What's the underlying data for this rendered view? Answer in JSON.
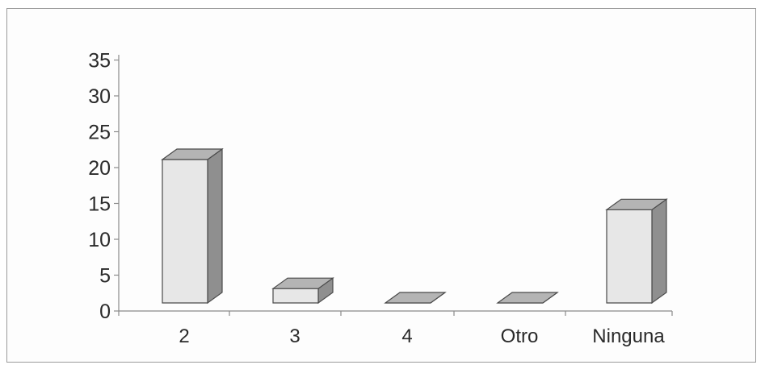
{
  "chart_data": {
    "type": "bar",
    "title": "",
    "xlabel": "",
    "ylabel": "",
    "categories": [
      "2",
      "3",
      "4",
      "Otro",
      "Ninguna"
    ],
    "values": [
      20,
      2,
      0,
      0,
      13
    ],
    "ylim": [
      0,
      35
    ],
    "yticks": [
      "0",
      "5",
      "10",
      "15",
      "20",
      "25",
      "30",
      "35"
    ],
    "style": "3d-column",
    "grid": false,
    "legend": "none",
    "colors": {
      "bar_front": "#e7e7e7",
      "bar_top": "#b4b4b4",
      "bar_side": "#8f8f8f",
      "axis": "#8a8a8a"
    }
  }
}
